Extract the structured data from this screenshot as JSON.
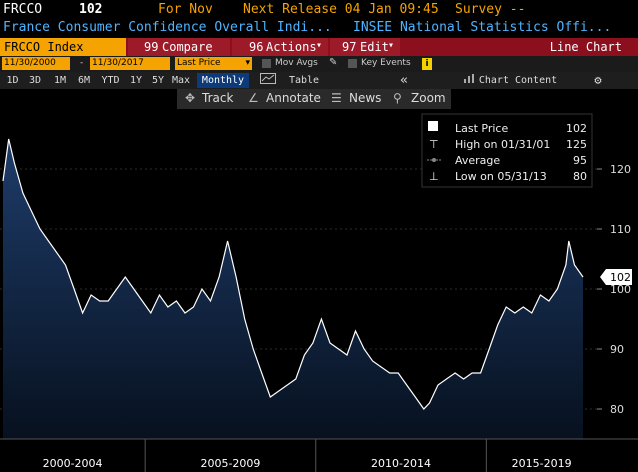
{
  "header": {
    "ticker": "FRCCO",
    "value": "102",
    "for_label": "For Nov",
    "next_release": "Next Release 04 Jan 09:45",
    "survey": "Survey --"
  },
  "subheader": {
    "title": "France Consumer Confidence Overall Indi...",
    "source": "INSEE National Statistics Offi..."
  },
  "toolbar": {
    "index": "FRCCO Index",
    "compare": "Compare",
    "compare_num": "99",
    "actions": "Actions",
    "actions_num": "96",
    "edit": "Edit",
    "edit_num": "97",
    "chart_type": "Line Chart"
  },
  "range_bar": {
    "start_date": "11/30/2000",
    "end_date": "11/30/2017",
    "price_select": "Last Price",
    "mov_avgs": "Mov Avgs",
    "key_events": "Key Events"
  },
  "period_bar": {
    "periods": [
      "1D",
      "3D",
      "1M",
      "6M",
      "YTD",
      "1Y",
      "5Y",
      "Max"
    ],
    "frequency": "Monthly",
    "table": "Table",
    "chart_content": "Chart Content"
  },
  "tools": {
    "track": "Track",
    "annotate": "Annotate",
    "news": "News",
    "zoom": "Zoom"
  },
  "legend": {
    "last_price_label": "Last Price",
    "last_price_value": "102",
    "high_label": "High on 01/31/01",
    "high_value": "125",
    "average_label": "Average",
    "average_value": "95",
    "low_label": "Low on 05/31/13",
    "low_value": "80"
  },
  "last_value_tag": "102",
  "colors": {
    "accent_orange": "#f5a300",
    "toolbar_red": "#8c0f1e",
    "area_top": "#1e3c6a",
    "line": "#ffffff"
  },
  "chart_data": {
    "type": "area",
    "title": "France Consumer Confidence Overall Indi...",
    "xlabel": "",
    "ylabel": "",
    "x_range": [
      "2000-11",
      "2017-11"
    ],
    "ylim": [
      75,
      130
    ],
    "yticks": [
      80,
      90,
      100,
      110,
      120
    ],
    "xtick_labels": [
      "2000-2004",
      "2005-2009",
      "2010-2014",
      "2015-2019"
    ],
    "grid": true,
    "legend_position": "top-right",
    "series": [
      {
        "name": "Last Price",
        "x": [
          "2000-11",
          "2001-01",
          "2001-03",
          "2001-06",
          "2001-09",
          "2001-12",
          "2002-03",
          "2002-06",
          "2002-09",
          "2002-12",
          "2003-03",
          "2003-06",
          "2003-09",
          "2003-12",
          "2004-03",
          "2004-06",
          "2004-09",
          "2004-12",
          "2005-03",
          "2005-06",
          "2005-09",
          "2005-12",
          "2006-03",
          "2006-06",
          "2006-09",
          "2006-12",
          "2007-03",
          "2007-06",
          "2007-09",
          "2007-12",
          "2008-03",
          "2008-06",
          "2008-09",
          "2008-12",
          "2009-03",
          "2009-06",
          "2009-09",
          "2009-12",
          "2010-03",
          "2010-06",
          "2010-09",
          "2010-12",
          "2011-03",
          "2011-06",
          "2011-09",
          "2011-12",
          "2012-03",
          "2012-06",
          "2012-09",
          "2012-12",
          "2013-03",
          "2013-05",
          "2013-08",
          "2013-11",
          "2014-02",
          "2014-05",
          "2014-08",
          "2014-11",
          "2015-02",
          "2015-05",
          "2015-08",
          "2015-11",
          "2016-02",
          "2016-05",
          "2016-08",
          "2016-11",
          "2017-02",
          "2017-05",
          "2017-06",
          "2017-08",
          "2017-11"
        ],
        "values": [
          118,
          125,
          121,
          116,
          113,
          110,
          108,
          106,
          104,
          100,
          96,
          99,
          98,
          98,
          100,
          102,
          100,
          98,
          96,
          99,
          97,
          98,
          96,
          97,
          100,
          98,
          102,
          108,
          102,
          95,
          90,
          86,
          82,
          83,
          84,
          85,
          89,
          91,
          95,
          91,
          90,
          89,
          93,
          90,
          88,
          87,
          86,
          86,
          84,
          82,
          80,
          81,
          84,
          85,
          86,
          85,
          86,
          86,
          90,
          94,
          97,
          96,
          97,
          96,
          99,
          98,
          100,
          104,
          108,
          104,
          102
        ]
      }
    ]
  }
}
